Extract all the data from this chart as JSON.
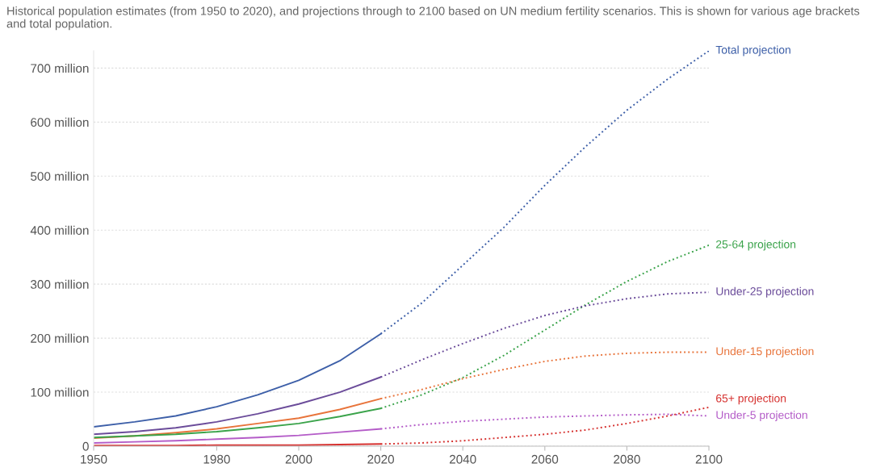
{
  "chart_data": {
    "type": "line",
    "title": "Historical population estimates (from 1950 to 2020), and projections through to 2100 based on UN medium fertility scenarios. This is shown for various age brackets and total population.",
    "xlim": [
      1950,
      2100
    ],
    "ylim": [
      0,
      732
    ],
    "xticks": [
      1950,
      1980,
      2000,
      2020,
      2040,
      2060,
      2080,
      2100
    ],
    "yticks": [
      {
        "value": 0,
        "label": "0"
      },
      {
        "value": 100,
        "label": "100 million"
      },
      {
        "value": 200,
        "label": "200 million"
      },
      {
        "value": 300,
        "label": "300 million"
      },
      {
        "value": 400,
        "label": "400 million"
      },
      {
        "value": 500,
        "label": "500 million"
      },
      {
        "value": 600,
        "label": "600 million"
      },
      {
        "value": 700,
        "label": "700 million"
      }
    ],
    "grid": "y",
    "legend": false,
    "series": [
      {
        "color": "#3d5fa8",
        "line_style": "solid",
        "x": [
          1950,
          1960,
          1970,
          1980,
          1990,
          2000,
          2010,
          2020
        ],
        "values": [
          36,
          45,
          56,
          73,
          95,
          122,
          158,
          208
        ]
      },
      {
        "color": "#6b4c9a",
        "line_style": "solid",
        "x": [
          1950,
          1960,
          1970,
          1980,
          1990,
          2000,
          2010,
          2020
        ],
        "values": [
          22,
          27,
          34,
          45,
          60,
          78,
          100,
          128
        ]
      },
      {
        "color": "#e8743b",
        "line_style": "solid",
        "x": [
          1950,
          1960,
          1970,
          1980,
          1990,
          2000,
          2010,
          2020
        ],
        "values": [
          15,
          19,
          25,
          32,
          42,
          52,
          68,
          88
        ]
      },
      {
        "color": "#3aa34a",
        "line_style": "solid",
        "x": [
          1950,
          1960,
          1970,
          1980,
          1990,
          2000,
          2010,
          2020
        ],
        "values": [
          16,
          19,
          22,
          27,
          34,
          42,
          55,
          70
        ]
      },
      {
        "color": "#b45cc8",
        "line_style": "solid",
        "x": [
          1950,
          1960,
          1970,
          1980,
          1990,
          2000,
          2010,
          2020
        ],
        "values": [
          6,
          8,
          10,
          13,
          16,
          20,
          26,
          32
        ]
      },
      {
        "color": "#d6312f",
        "line_style": "solid",
        "x": [
          1950,
          1960,
          1970,
          1980,
          1990,
          2000,
          2010,
          2020
        ],
        "values": [
          1,
          1,
          1,
          2,
          2,
          2,
          3,
          4
        ]
      },
      {
        "name": "Total projection",
        "color": "#3d5fa8",
        "line_style": "dotted",
        "x": [
          2020,
          2030,
          2040,
          2050,
          2060,
          2070,
          2080,
          2090,
          2100
        ],
        "values": [
          208,
          265,
          335,
          405,
          483,
          555,
          622,
          680,
          732
        ]
      },
      {
        "name": "25-64 projection",
        "color": "#3aa34a",
        "line_style": "dotted",
        "x": [
          2020,
          2030,
          2040,
          2050,
          2060,
          2070,
          2080,
          2090,
          2100
        ],
        "values": [
          70,
          95,
          127,
          168,
          215,
          262,
          305,
          342,
          372
        ]
      },
      {
        "name": "Under-25 projection",
        "color": "#6b4c9a",
        "line_style": "dotted",
        "x": [
          2020,
          2030,
          2040,
          2050,
          2060,
          2070,
          2080,
          2090,
          2100
        ],
        "values": [
          128,
          160,
          190,
          218,
          242,
          260,
          273,
          282,
          285
        ]
      },
      {
        "name": "Under-15 projection",
        "color": "#e8743b",
        "line_style": "dotted",
        "x": [
          2020,
          2030,
          2040,
          2050,
          2060,
          2070,
          2080,
          2090,
          2100
        ],
        "values": [
          88,
          105,
          125,
          142,
          157,
          167,
          172,
          174,
          174
        ]
      },
      {
        "name": "65+ projection",
        "color": "#d6312f",
        "line_style": "dotted",
        "x": [
          2020,
          2030,
          2040,
          2050,
          2060,
          2070,
          2080,
          2090,
          2100
        ],
        "values": [
          4,
          6,
          10,
          16,
          22,
          30,
          42,
          56,
          72
        ]
      },
      {
        "name": "Under-5 projection",
        "color": "#b45cc8",
        "line_style": "dotted",
        "x": [
          2020,
          2030,
          2040,
          2050,
          2060,
          2070,
          2080,
          2090,
          2100
        ],
        "values": [
          32,
          40,
          46,
          50,
          54,
          56,
          58,
          59,
          56
        ]
      }
    ]
  }
}
